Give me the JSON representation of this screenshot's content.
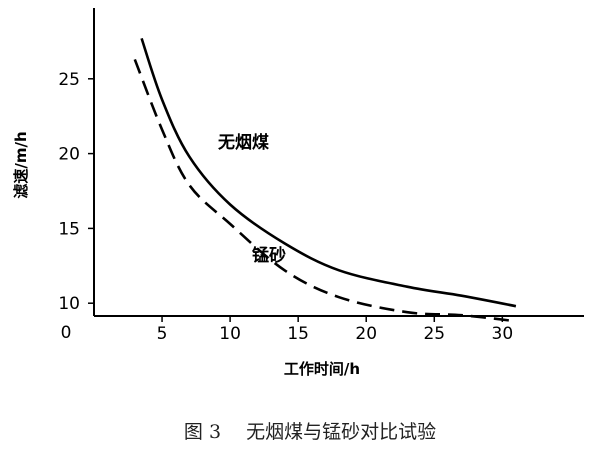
{
  "chart_data": {
    "type": "line",
    "title": "图 3　 无烟煤与锰砂对比试验",
    "xlabel": "工作时间/h",
    "ylabel": "滤速/m/h",
    "origin_label": "0",
    "xlim": [
      0,
      36
    ],
    "ylim": [
      5,
      30
    ],
    "xticks": [
      5,
      10,
      15,
      20,
      25,
      30
    ],
    "yticks": [
      10,
      15,
      20,
      25
    ],
    "grid": false,
    "legend": "none",
    "series": [
      {
        "name": "无烟煤",
        "style": "solid",
        "color": "#000000",
        "x": [
          3.5,
          5,
          7,
          10,
          14,
          18,
          23,
          27,
          31
        ],
        "y": [
          27.7,
          23.6,
          19.8,
          16.6,
          14.0,
          12.2,
          11.1,
          10.5,
          9.8
        ]
      },
      {
        "name": "锰砂",
        "style": "dashed",
        "color": "#000000",
        "x": [
          3,
          5,
          7,
          10,
          14,
          18,
          23,
          27,
          31
        ],
        "y": [
          26.3,
          21.6,
          17.9,
          15.3,
          12.2,
          10.4,
          9.4,
          9.2,
          8.8
        ]
      }
    ]
  }
}
